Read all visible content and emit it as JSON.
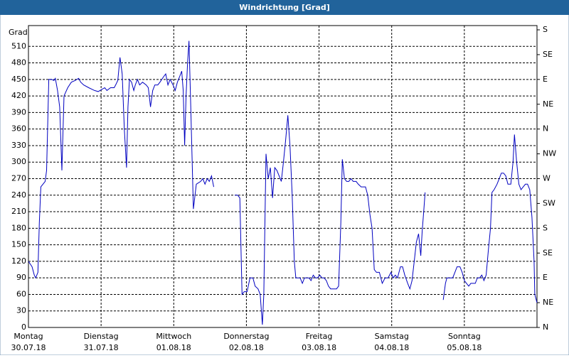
{
  "chart_data": {
    "type": "line",
    "title": "Windrichtung [Grad]",
    "y_label": "Grad",
    "xlim": [
      0,
      7
    ],
    "xticks": [
      {
        "value": 0,
        "label": "Montag",
        "sublabel": "30.07.18"
      },
      {
        "value": 1,
        "label": "Dienstag",
        "sublabel": "31.07.18"
      },
      {
        "value": 2,
        "label": "Mittwoch",
        "sublabel": "01.08.18"
      },
      {
        "value": 3,
        "label": "Donnerstag",
        "sublabel": "02.08.18"
      },
      {
        "value": 4,
        "label": "Freitag",
        "sublabel": "03.08.18"
      },
      {
        "value": 5,
        "label": "Samstag",
        "sublabel": "04.08.18"
      },
      {
        "value": 6,
        "label": "Sonntag",
        "sublabel": "05.08.18"
      }
    ],
    "ylim": [
      0,
      540
    ],
    "yticks": [
      0,
      30,
      60,
      90,
      120,
      150,
      180,
      210,
      240,
      270,
      300,
      330,
      360,
      390,
      420,
      450,
      480,
      510
    ],
    "y2lim": [
      0,
      540
    ],
    "y2ticks": [
      {
        "value": 0,
        "label": "N"
      },
      {
        "value": 45,
        "label": "NE"
      },
      {
        "value": 90,
        "label": "E"
      },
      {
        "value": 135,
        "label": "SE"
      },
      {
        "value": 180,
        "label": "S"
      },
      {
        "value": 225,
        "label": "SW"
      },
      {
        "value": 270,
        "label": "W"
      },
      {
        "value": 315,
        "label": "NW"
      },
      {
        "value": 360,
        "label": "N"
      },
      {
        "value": 405,
        "label": "NE"
      },
      {
        "value": 450,
        "label": "E"
      },
      {
        "value": 495,
        "label": "SE"
      },
      {
        "value": 540,
        "label": "S"
      }
    ],
    "grid": true,
    "series": [
      {
        "color": "#0000c0",
        "x": [
          0,
          0.05,
          0.08,
          0.1,
          0.13,
          0.15,
          0.17,
          0.2,
          0.23,
          0.25,
          0.28,
          0.32,
          0.35,
          0.37,
          0.4,
          0.43,
          0.46,
          0.49,
          0.54,
          0.59,
          0.64,
          0.69,
          0.72,
          0.76,
          0.83,
          0.91,
          0.96,
          1.01,
          1.05,
          1.08,
          1.13,
          1.18,
          1.2,
          1.23,
          1.26,
          1.29,
          1.32,
          1.35,
          1.37,
          1.39,
          1.42,
          1.45,
          1.47,
          1.5,
          1.53,
          1.57,
          1.62,
          1.65,
          1.68,
          1.71,
          1.74,
          1.78,
          1.81,
          1.86,
          1.89,
          1.92,
          1.95,
          1.99,
          2.02,
          2.05,
          2.08,
          2.11,
          2.13,
          2.15,
          2.17,
          2.19,
          2.21,
          2.23,
          2.25,
          2.27,
          2.31,
          2.37,
          2.4,
          2.43,
          2.46,
          2.49,
          2.52,
          2.55,
          2.7,
          2.84,
          2.88,
          2.91,
          2.94,
          2.97,
          3.01,
          3.05,
          3.09,
          3.12,
          3.16,
          3.19,
          3.22,
          3.24,
          3.27,
          3.3,
          3.33,
          3.36,
          3.39,
          3.42,
          3.45,
          3.48,
          3.51,
          3.54,
          3.57,
          3.6,
          3.63,
          3.66,
          3.68,
          3.71,
          3.74,
          3.77,
          3.8,
          3.83,
          3.86,
          3.89,
          3.92,
          3.95,
          3.98,
          4.01,
          4.04,
          4.07,
          4.1,
          4.13,
          4.16,
          4.18,
          4.21,
          4.24,
          4.27,
          4.3,
          4.32,
          4.35,
          4.38,
          4.41,
          4.44,
          4.47,
          4.51,
          4.54,
          4.58,
          4.61,
          4.64,
          4.67,
          4.7,
          4.73,
          4.76,
          4.79,
          4.83,
          4.87,
          4.91,
          4.95,
          4.99,
          5.02,
          5.05,
          5.08,
          5.12,
          5.15,
          5.18,
          5.22,
          5.25,
          5.28,
          5.31,
          5.34,
          5.37,
          5.4,
          5.42,
          5.44,
          5.46,
          5.58,
          5.71,
          5.74,
          5.76,
          5.8,
          5.84,
          5.87,
          5.9,
          5.94,
          5.97,
          6.0,
          6.03,
          6.06,
          6.09,
          6.12,
          6.15,
          6.18,
          6.21,
          6.24,
          6.27,
          6.3,
          6.33,
          6.36,
          6.38,
          6.41,
          6.45,
          6.48,
          6.51,
          6.54,
          6.57,
          6.6,
          6.64,
          6.67,
          6.69,
          6.72,
          6.75,
          6.78,
          6.81,
          6.84,
          6.87,
          6.9,
          6.93,
          6.96,
          6.97,
          7.0
        ],
        "values": [
          120,
          110,
          95,
          90,
          100,
          190,
          255,
          260,
          265,
          285,
          450,
          450,
          448,
          452,
          430,
          400,
          285,
          420,
          435,
          445,
          448,
          452,
          445,
          440,
          435,
          430,
          428,
          432,
          435,
          430,
          435,
          435,
          440,
          448,
          490,
          460,
          360,
          290,
          400,
          450,
          445,
          430,
          440,
          450,
          440,
          445,
          440,
          435,
          400,
          430,
          440,
          440,
          445,
          455,
          460,
          440,
          450,
          440,
          430,
          445,
          455,
          465,
          430,
          330,
          420,
          480,
          520,
          420,
          320,
          215,
          260,
          265,
          270,
          260,
          270,
          265,
          275,
          255,
          null,
          240,
          240,
          235,
          60,
          65,
          65,
          90,
          90,
          75,
          70,
          60,
          5,
          60,
          315,
          270,
          290,
          235,
          290,
          285,
          275,
          265,
          300,
          340,
          385,
          330,
          240,
          120,
          90,
          90,
          90,
          80,
          90,
          90,
          90,
          85,
          95,
          90,
          90,
          95,
          90,
          90,
          85,
          75,
          70,
          70,
          70,
          70,
          75,
          190,
          305,
          270,
          265,
          265,
          270,
          265,
          265,
          260,
          255,
          255,
          255,
          240,
          205,
          180,
          105,
          100,
          100,
          80,
          90,
          90,
          100,
          90,
          95,
          90,
          110,
          110,
          95,
          80,
          70,
          85,
          120,
          155,
          170,
          130,
          175,
          210,
          245,
          null,
          50,
          80,
          90,
          90,
          90,
          100,
          110,
          110,
          100,
          85,
          80,
          75,
          80,
          80,
          80,
          90,
          90,
          95,
          85,
          95,
          140,
          180,
          245,
          250,
          260,
          270,
          280,
          280,
          275,
          260,
          260,
          300,
          350,
          300,
          260,
          250,
          255,
          260,
          260,
          250,
          200,
          120,
          60,
          45
        ]
      }
    ]
  }
}
